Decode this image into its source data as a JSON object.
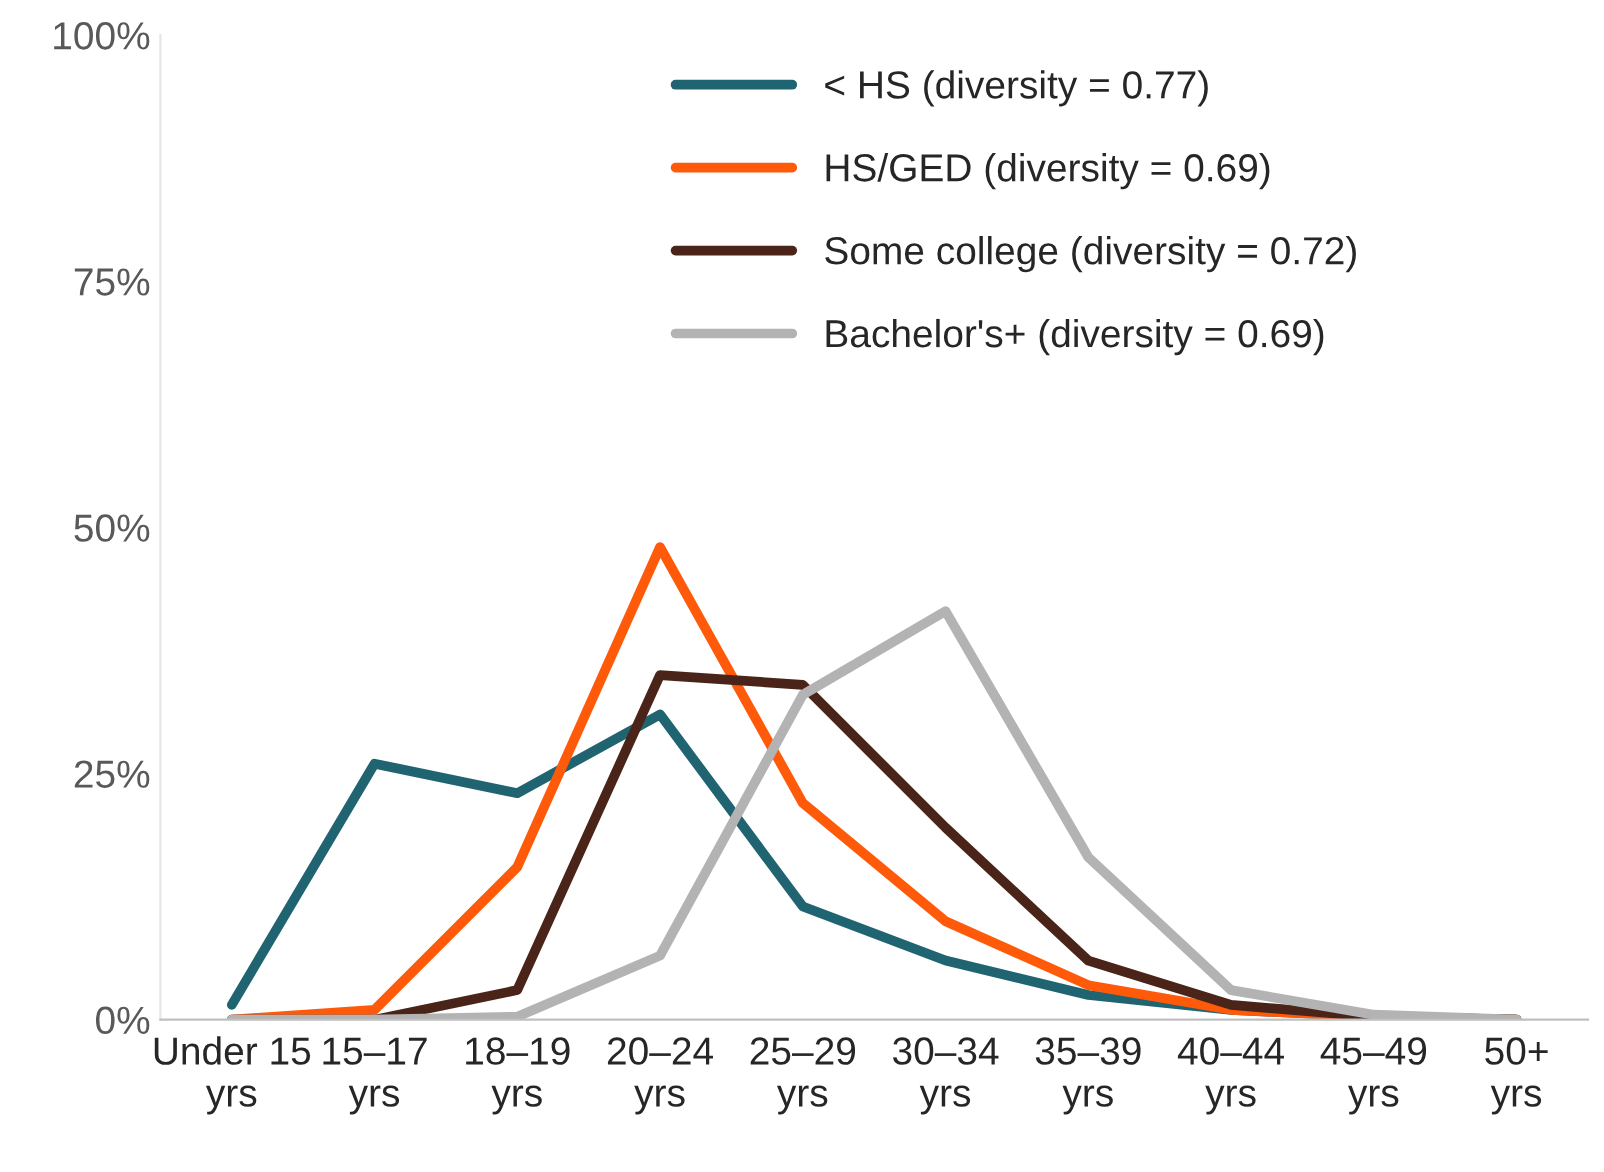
{
  "chart_data": {
    "type": "line",
    "categories": [
      "Under 15 yrs",
      "15–17 yrs",
      "18–19 yrs",
      "20–24 yrs",
      "25–29 yrs",
      "30–34 yrs",
      "35–39 yrs",
      "40–44 yrs",
      "45–49 yrs",
      "50+ yrs"
    ],
    "series": [
      {
        "name": "< HS (diversity = 0.77)",
        "color": "#1f6470",
        "values": [
          1.5,
          26,
          23,
          31,
          11.5,
          6,
          2.5,
          1,
          0.3,
          0
        ]
      },
      {
        "name": "HS/GED (diversity = 0.69)",
        "color": "#ff5a0a",
        "values": [
          0,
          1,
          15.5,
          48,
          22,
          10,
          3.5,
          1,
          0.3,
          0
        ]
      },
      {
        "name": "Some college (diversity = 0.72)",
        "color": "#4a2418",
        "values": [
          0,
          0,
          3,
          35,
          34,
          19.5,
          6,
          1.5,
          0.3,
          0
        ]
      },
      {
        "name": "Bachelor's+ (diversity = 0.69)",
        "color": "#b3b3b3",
        "values": [
          0,
          0,
          0.3,
          6.5,
          33,
          41.5,
          16.5,
          3,
          0.5,
          0
        ]
      }
    ],
    "ylim": [
      0,
      100
    ],
    "yticks": [
      {
        "value": 0,
        "label": "0%"
      },
      {
        "value": 25,
        "label": "25%"
      },
      {
        "value": 50,
        "label": "50%"
      },
      {
        "value": 75,
        "label": "75%"
      },
      {
        "value": 100,
        "label": "100%"
      }
    ],
    "grid": false,
    "legend": "top",
    "marker": "none",
    "line_style": "solid"
  }
}
